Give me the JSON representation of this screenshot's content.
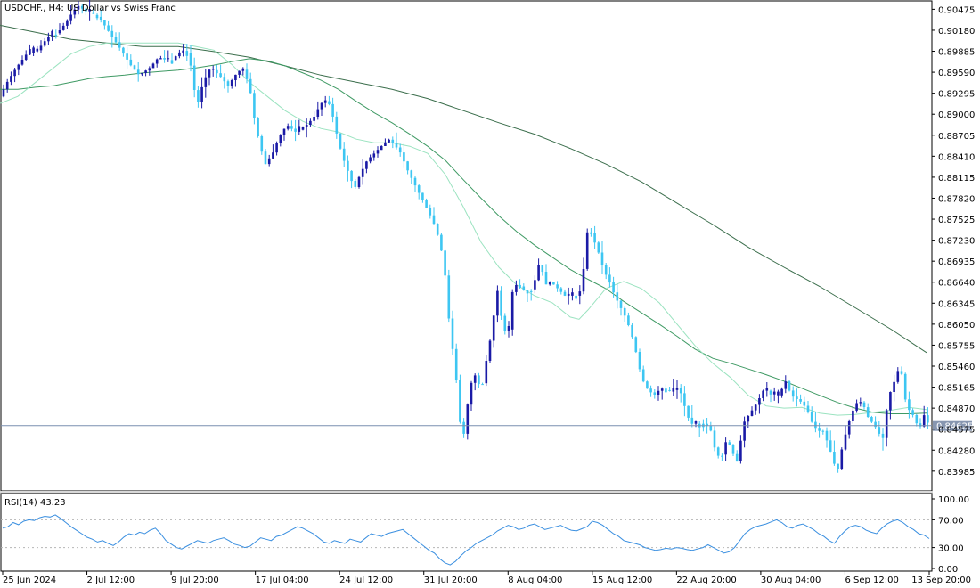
{
  "header": {
    "symbol_caption": "USDCHF., H4:  US Dollar vs Swiss Franc",
    "rsi_caption": "RSI(14) 43.23"
  },
  "current_price": {
    "label": "0.84625",
    "value": 0.84625
  },
  "colors": {
    "bull_candle": "#1a1aa6",
    "bear_candle": "#3dc6f2",
    "ma_fast": "#9be3c0",
    "ma_mid": "#3f9a64",
    "ma_slow": "#3b6e4c",
    "rsi_line": "#3a8fe0",
    "price_line": "#7a8fb0",
    "frame": "#000000"
  },
  "chart_data": [
    {
      "type": "candlestick",
      "title": "USDCHF., H4:  US Dollar vs Swiss Franc",
      "ylim": [
        0.8372,
        0.9058
      ],
      "y_ticks": [
        "0.90475",
        "0.90180",
        "0.89885",
        "0.89590",
        "0.89295",
        "0.89000",
        "0.88705",
        "0.88410",
        "0.88115",
        "0.87820",
        "0.87525",
        "0.87230",
        "0.86935",
        "0.86640",
        "0.86345",
        "0.86050",
        "0.85755",
        "0.85460",
        "0.85165",
        "0.84870",
        "0.84575",
        "0.84280",
        "0.83985"
      ],
      "x_labels": [
        "25 Jun 2024",
        "2 Jul 12:00",
        "9 Jul 20:00",
        "17 Jul 04:00",
        "24 Jul 12:00",
        "31 Jul 20:00",
        "8 Aug 04:00",
        "15 Aug 12:00",
        "22 Aug 20:00",
        "30 Aug 04:00",
        "6 Sep 12:00",
        "13 Sep 20:00"
      ],
      "price_path": [
        [
          0,
          0.8925
        ],
        [
          8,
          0.8945
        ],
        [
          18,
          0.8965
        ],
        [
          30,
          0.8985
        ],
        [
          42,
          0.899
        ],
        [
          55,
          0.901
        ],
        [
          65,
          0.9015
        ],
        [
          75,
          0.903
        ],
        [
          82,
          0.9045
        ],
        [
          88,
          0.9052
        ],
        [
          96,
          0.9045
        ],
        [
          104,
          0.904
        ],
        [
          112,
          0.9035
        ],
        [
          120,
          0.902
        ],
        [
          128,
          0.9005
        ],
        [
          136,
          0.899
        ],
        [
          146,
          0.897
        ],
        [
          156,
          0.8955
        ],
        [
          168,
          0.8965
        ],
        [
          178,
          0.898
        ],
        [
          192,
          0.8975
        ],
        [
          204,
          0.899
        ],
        [
          212,
          0.8985
        ],
        [
          218,
          0.8935
        ],
        [
          222,
          0.8915
        ],
        [
          228,
          0.8945
        ],
        [
          236,
          0.8965
        ],
        [
          246,
          0.8955
        ],
        [
          256,
          0.894
        ],
        [
          264,
          0.8955
        ],
        [
          272,
          0.8965
        ],
        [
          280,
          0.894
        ],
        [
          286,
          0.889
        ],
        [
          292,
          0.8855
        ],
        [
          298,
          0.883
        ],
        [
          306,
          0.8845
        ],
        [
          314,
          0.887
        ],
        [
          322,
          0.8885
        ],
        [
          332,
          0.8875
        ],
        [
          344,
          0.8885
        ],
        [
          352,
          0.8895
        ],
        [
          360,
          0.8915
        ],
        [
          368,
          0.892
        ],
        [
          374,
          0.8895
        ],
        [
          380,
          0.886
        ],
        [
          386,
          0.8835
        ],
        [
          392,
          0.8815
        ],
        [
          398,
          0.8795
        ],
        [
          404,
          0.8815
        ],
        [
          412,
          0.8835
        ],
        [
          420,
          0.8845
        ],
        [
          428,
          0.8855
        ],
        [
          436,
          0.8865
        ],
        [
          444,
          0.8855
        ],
        [
          450,
          0.8845
        ],
        [
          456,
          0.8825
        ],
        [
          462,
          0.881
        ],
        [
          470,
          0.879
        ],
        [
          478,
          0.877
        ],
        [
          486,
          0.875
        ],
        [
          494,
          0.872
        ],
        [
          500,
          0.867
        ],
        [
          504,
          0.861
        ],
        [
          508,
          0.857
        ],
        [
          512,
          0.853
        ],
        [
          516,
          0.847
        ],
        [
          520,
          0.8445
        ],
        [
          524,
          0.8485
        ],
        [
          528,
          0.852
        ],
        [
          534,
          0.8535
        ],
        [
          540,
          0.851
        ],
        [
          546,
          0.8555
        ],
        [
          552,
          0.8595
        ],
        [
          558,
          0.8655
        ],
        [
          564,
          0.8605
        ],
        [
          570,
          0.8585
        ],
        [
          576,
          0.866
        ],
        [
          582,
          0.866
        ],
        [
          590,
          0.865
        ],
        [
          598,
          0.8655
        ],
        [
          606,
          0.8695
        ],
        [
          612,
          0.866
        ],
        [
          618,
          0.8665
        ],
        [
          626,
          0.8655
        ],
        [
          634,
          0.8645
        ],
        [
          642,
          0.8645
        ],
        [
          650,
          0.8645
        ],
        [
          656,
          0.869
        ],
        [
          660,
          0.8745
        ],
        [
          666,
          0.8725
        ],
        [
          672,
          0.8705
        ],
        [
          678,
          0.868
        ],
        [
          684,
          0.8665
        ],
        [
          690,
          0.8645
        ],
        [
          696,
          0.863
        ],
        [
          702,
          0.8615
        ],
        [
          708,
          0.8595
        ],
        [
          714,
          0.8565
        ],
        [
          720,
          0.853
        ],
        [
          726,
          0.8515
        ],
        [
          734,
          0.8505
        ],
        [
          742,
          0.8515
        ],
        [
          752,
          0.851
        ],
        [
          760,
          0.8515
        ],
        [
          766,
          0.8505
        ],
        [
          770,
          0.848
        ],
        [
          776,
          0.8465
        ],
        [
          784,
          0.8465
        ],
        [
          792,
          0.8465
        ],
        [
          798,
          0.8455
        ],
        [
          804,
          0.842
        ],
        [
          810,
          0.842
        ],
        [
          816,
          0.8445
        ],
        [
          822,
          0.8425
        ],
        [
          828,
          0.841
        ],
        [
          834,
          0.8465
        ],
        [
          842,
          0.848
        ],
        [
          850,
          0.8495
        ],
        [
          858,
          0.8515
        ],
        [
          866,
          0.8505
        ],
        [
          874,
          0.8505
        ],
        [
          882,
          0.8525
        ],
        [
          888,
          0.8505
        ],
        [
          894,
          0.85
        ],
        [
          900,
          0.8495
        ],
        [
          906,
          0.8485
        ],
        [
          912,
          0.8465
        ],
        [
          918,
          0.8455
        ],
        [
          924,
          0.8455
        ],
        [
          930,
          0.8435
        ],
        [
          936,
          0.841
        ],
        [
          940,
          0.8398
        ],
        [
          944,
          0.8425
        ],
        [
          950,
          0.8455
        ],
        [
          956,
          0.848
        ],
        [
          962,
          0.8495
        ],
        [
          968,
          0.8495
        ],
        [
          974,
          0.8475
        ],
        [
          980,
          0.8465
        ],
        [
          986,
          0.8455
        ],
        [
          990,
          0.8435
        ],
        [
          994,
          0.8475
        ],
        [
          998,
          0.8505
        ],
        [
          1004,
          0.8525
        ],
        [
          1008,
          0.854
        ],
        [
          1012,
          0.8535
        ],
        [
          1016,
          0.85
        ],
        [
          1020,
          0.8485
        ],
        [
          1026,
          0.8475
        ],
        [
          1032,
          0.8455
        ],
        [
          1036,
          0.848
        ],
        [
          1042,
          0.8465
        ]
      ],
      "ma_fast_path": [
        [
          0,
          0.8915
        ],
        [
          20,
          0.8925
        ],
        [
          40,
          0.8945
        ],
        [
          60,
          0.8965
        ],
        [
          80,
          0.8985
        ],
        [
          100,
          0.8995
        ],
        [
          120,
          0.9
        ],
        [
          140,
          0.9
        ],
        [
          160,
          0.9
        ],
        [
          180,
          0.9
        ],
        [
          200,
          0.9
        ],
        [
          220,
          0.8995
        ],
        [
          240,
          0.899
        ],
        [
          260,
          0.897
        ],
        [
          280,
          0.8945
        ],
        [
          300,
          0.8925
        ],
        [
          320,
          0.8905
        ],
        [
          340,
          0.889
        ],
        [
          360,
          0.888
        ],
        [
          380,
          0.8875
        ],
        [
          400,
          0.8865
        ],
        [
          420,
          0.886
        ],
        [
          440,
          0.886
        ],
        [
          460,
          0.8855
        ],
        [
          480,
          0.8845
        ],
        [
          500,
          0.8815
        ],
        [
          520,
          0.877
        ],
        [
          540,
          0.872
        ],
        [
          560,
          0.8685
        ],
        [
          580,
          0.866
        ],
        [
          600,
          0.8645
        ],
        [
          620,
          0.8635
        ],
        [
          640,
          0.8615
        ],
        [
          650,
          0.8612
        ],
        [
          660,
          0.8625
        ],
        [
          670,
          0.864
        ],
        [
          680,
          0.8655
        ],
        [
          700,
          0.8665
        ],
        [
          720,
          0.8655
        ],
        [
          740,
          0.8635
        ],
        [
          760,
          0.8605
        ],
        [
          780,
          0.8575
        ],
        [
          800,
          0.855
        ],
        [
          820,
          0.853
        ],
        [
          840,
          0.8505
        ],
        [
          860,
          0.849
        ],
        [
          880,
          0.8487
        ],
        [
          900,
          0.8488
        ],
        [
          920,
          0.848
        ],
        [
          940,
          0.8477
        ],
        [
          960,
          0.8478
        ],
        [
          980,
          0.8481
        ],
        [
          1000,
          0.8484
        ],
        [
          1020,
          0.8488
        ],
        [
          1040,
          0.8485
        ]
      ],
      "ma_mid_path": [
        [
          0,
          0.8935
        ],
        [
          20,
          0.8935
        ],
        [
          40,
          0.8938
        ],
        [
          60,
          0.894
        ],
        [
          80,
          0.8945
        ],
        [
          100,
          0.895
        ],
        [
          120,
          0.8953
        ],
        [
          140,
          0.8955
        ],
        [
          160,
          0.8958
        ],
        [
          180,
          0.896
        ],
        [
          200,
          0.8962
        ],
        [
          220,
          0.8965
        ],
        [
          240,
          0.8969
        ],
        [
          260,
          0.8974
        ],
        [
          280,
          0.8978
        ],
        [
          300,
          0.8975
        ],
        [
          320,
          0.8968
        ],
        [
          340,
          0.8958
        ],
        [
          360,
          0.8948
        ],
        [
          380,
          0.8935
        ],
        [
          400,
          0.8918
        ],
        [
          420,
          0.8902
        ],
        [
          440,
          0.8888
        ],
        [
          460,
          0.8872
        ],
        [
          480,
          0.8855
        ],
        [
          500,
          0.8835
        ],
        [
          520,
          0.8808
        ],
        [
          540,
          0.8782
        ],
        [
          560,
          0.8757
        ],
        [
          580,
          0.8735
        ],
        [
          600,
          0.8716
        ],
        [
          620,
          0.8699
        ],
        [
          640,
          0.8682
        ],
        [
          660,
          0.8668
        ],
        [
          680,
          0.8655
        ],
        [
          700,
          0.8637
        ],
        [
          720,
          0.8621
        ],
        [
          740,
          0.8605
        ],
        [
          760,
          0.8588
        ],
        [
          780,
          0.857
        ],
        [
          800,
          0.8557
        ],
        [
          820,
          0.855
        ],
        [
          840,
          0.8542
        ],
        [
          860,
          0.8534
        ],
        [
          880,
          0.8525
        ],
        [
          900,
          0.8515
        ],
        [
          920,
          0.8505
        ],
        [
          940,
          0.8495
        ],
        [
          960,
          0.8487
        ],
        [
          980,
          0.8481
        ],
        [
          1000,
          0.8479
        ],
        [
          1020,
          0.8479
        ],
        [
          1040,
          0.848
        ]
      ],
      "ma_slow_path": [
        [
          0,
          0.9025
        ],
        [
          40,
          0.9015
        ],
        [
          80,
          0.9005
        ],
        [
          120,
          0.9
        ],
        [
          160,
          0.8995
        ],
        [
          200,
          0.8995
        ],
        [
          240,
          0.8988
        ],
        [
          280,
          0.898
        ],
        [
          320,
          0.8968
        ],
        [
          360,
          0.8955
        ],
        [
          400,
          0.8945
        ],
        [
          440,
          0.8935
        ],
        [
          480,
          0.8922
        ],
        [
          520,
          0.8905
        ],
        [
          560,
          0.8888
        ],
        [
          600,
          0.8872
        ],
        [
          640,
          0.8852
        ],
        [
          680,
          0.883
        ],
        [
          720,
          0.8805
        ],
        [
          760,
          0.8775
        ],
        [
          800,
          0.8745
        ],
        [
          840,
          0.8713
        ],
        [
          880,
          0.8685
        ],
        [
          920,
          0.8658
        ],
        [
          960,
          0.8628
        ],
        [
          1000,
          0.8598
        ],
        [
          1040,
          0.8565
        ]
      ]
    },
    {
      "type": "line",
      "title": "RSI(14) 43.23",
      "ylim": [
        0,
        100
      ],
      "y_ticks": [
        "100.00",
        "70.00",
        "30.00",
        "0.00"
      ],
      "levels": [
        70,
        30
      ],
      "values": [
        58,
        60,
        66,
        63,
        68,
        70,
        69,
        73,
        75,
        74,
        77,
        72,
        66,
        60,
        55,
        50,
        45,
        42,
        38,
        40,
        36,
        33,
        38,
        45,
        50,
        48,
        52,
        50,
        55,
        58,
        50,
        40,
        35,
        30,
        28,
        32,
        36,
        40,
        38,
        36,
        40,
        42,
        44,
        40,
        35,
        33,
        30,
        32,
        38,
        44,
        42,
        40,
        46,
        48,
        52,
        56,
        60,
        58,
        54,
        50,
        44,
        38,
        36,
        40,
        38,
        36,
        42,
        40,
        38,
        44,
        50,
        48,
        46,
        50,
        52,
        54,
        56,
        50,
        44,
        38,
        32,
        26,
        22,
        14,
        8,
        5,
        10,
        18,
        25,
        30,
        36,
        40,
        44,
        48,
        54,
        58,
        62,
        60,
        56,
        58,
        62,
        64,
        60,
        56,
        58,
        60,
        62,
        58,
        55,
        54,
        57,
        60,
        68,
        66,
        62,
        56,
        50,
        46,
        40,
        38,
        36,
        34,
        30,
        28,
        26,
        27,
        29,
        28,
        30,
        29,
        27,
        26,
        28,
        30,
        34,
        30,
        26,
        22,
        24,
        30,
        40,
        50,
        56,
        60,
        62,
        64,
        67,
        70,
        66,
        60,
        58,
        62,
        64,
        60,
        56,
        50,
        46,
        40,
        36,
        46,
        54,
        60,
        62,
        60,
        55,
        52,
        50,
        58,
        64,
        68,
        70,
        66,
        60,
        56,
        50,
        48,
        43
      ]
    }
  ]
}
